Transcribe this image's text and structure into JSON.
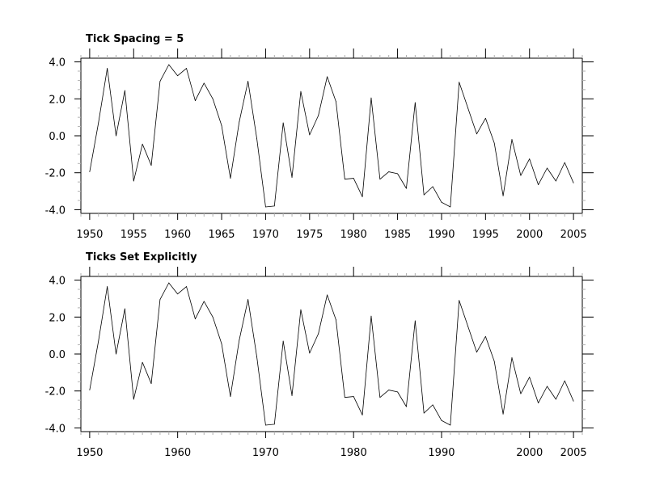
{
  "chart_data": [
    {
      "type": "line",
      "title": "Tick Spacing = 5",
      "xlabel": "",
      "ylabel": "",
      "xlim": [
        1949,
        2006
      ],
      "ylim": [
        -4.2,
        4.2
      ],
      "x_ticks": [
        1950,
        1955,
        1960,
        1965,
        1970,
        1975,
        1980,
        1985,
        1990,
        1995,
        2000,
        2005
      ],
      "x_tick_labels": [
        "1950",
        "1955",
        "1960",
        "1965",
        "1970",
        "1975",
        "1980",
        "1985",
        "1990",
        "1995",
        "2000",
        "2005"
      ],
      "y_ticks": [
        -4.0,
        -2.0,
        0.0,
        2.0,
        4.0
      ],
      "y_tick_labels": [
        "-4.0",
        "-2.0",
        "0.0",
        "2.0",
        "4.0"
      ],
      "grid": false,
      "line_color": "#000000",
      "x": [
        1950,
        1951,
        1952,
        1953,
        1954,
        1955,
        1956,
        1957,
        1958,
        1959,
        1960,
        1961,
        1962,
        1963,
        1964,
        1965,
        1966,
        1967,
        1968,
        1969,
        1970,
        1971,
        1972,
        1973,
        1974,
        1975,
        1976,
        1977,
        1978,
        1979,
        1980,
        1981,
        1982,
        1983,
        1984,
        1985,
        1986,
        1987,
        1988,
        1989,
        1990,
        1991,
        1992,
        1993,
        1994,
        1995,
        1996,
        1997,
        1998,
        1999,
        2000,
        2001,
        2002,
        2003,
        2004,
        2005
      ],
      "y": [
        -1.95,
        0.7,
        3.65,
        0.0,
        2.45,
        -2.45,
        -0.45,
        -1.6,
        2.95,
        3.85,
        3.25,
        3.65,
        1.9,
        2.85,
        2.0,
        0.55,
        -2.3,
        0.75,
        2.95,
        -0.15,
        -3.85,
        -3.8,
        0.7,
        -2.25,
        2.4,
        0.05,
        1.1,
        3.2,
        1.85,
        -2.35,
        -2.3,
        -3.3,
        2.05,
        -2.35,
        -1.95,
        -2.05,
        -2.85,
        1.8,
        -3.2,
        -2.75,
        -3.6,
        -3.85,
        2.9,
        1.5,
        0.1,
        0.95,
        -0.4,
        -3.25,
        -0.2,
        -2.15,
        -1.25,
        -2.65,
        -1.75,
        -2.45,
        -1.45,
        -2.55
      ]
    },
    {
      "type": "line",
      "title": "Ticks Set Explicitly",
      "xlabel": "",
      "ylabel": "",
      "xlim": [
        1949,
        2006
      ],
      "ylim": [
        -4.2,
        4.2
      ],
      "x_ticks": [
        1950,
        1960,
        1970,
        1980,
        1990,
        2000,
        2005
      ],
      "x_tick_labels": [
        "1950",
        "1960",
        "1970",
        "1980",
        "1990",
        "2000",
        "2005"
      ],
      "y_ticks": [
        -4.0,
        -2.0,
        0.0,
        2.0,
        4.0
      ],
      "y_tick_labels": [
        "-4.0",
        "-2.0",
        "0.0",
        "2.0",
        "4.0"
      ],
      "grid": false,
      "line_color": "#000000",
      "x": [
        1950,
        1951,
        1952,
        1953,
        1954,
        1955,
        1956,
        1957,
        1958,
        1959,
        1960,
        1961,
        1962,
        1963,
        1964,
        1965,
        1966,
        1967,
        1968,
        1969,
        1970,
        1971,
        1972,
        1973,
        1974,
        1975,
        1976,
        1977,
        1978,
        1979,
        1980,
        1981,
        1982,
        1983,
        1984,
        1985,
        1986,
        1987,
        1988,
        1989,
        1990,
        1991,
        1992,
        1993,
        1994,
        1995,
        1996,
        1997,
        1998,
        1999,
        2000,
        2001,
        2002,
        2003,
        2004,
        2005
      ],
      "y": [
        -1.95,
        0.7,
        3.65,
        0.0,
        2.45,
        -2.45,
        -0.45,
        -1.6,
        2.95,
        3.85,
        3.25,
        3.65,
        1.9,
        2.85,
        2.0,
        0.55,
        -2.3,
        0.75,
        2.95,
        -0.15,
        -3.85,
        -3.8,
        0.7,
        -2.25,
        2.4,
        0.05,
        1.1,
        3.2,
        1.85,
        -2.35,
        -2.3,
        -3.3,
        2.05,
        -2.35,
        -1.95,
        -2.05,
        -2.85,
        1.8,
        -3.2,
        -2.75,
        -3.6,
        -3.85,
        2.9,
        1.5,
        0.1,
        0.95,
        -0.4,
        -3.25,
        -0.2,
        -2.15,
        -1.25,
        -2.65,
        -1.75,
        -2.45,
        -1.45,
        -2.55
      ]
    }
  ]
}
